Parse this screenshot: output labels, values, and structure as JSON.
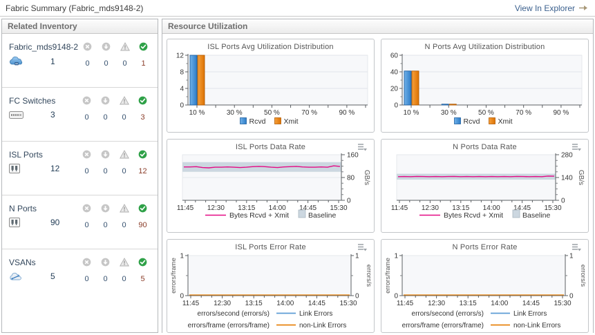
{
  "header": {
    "title": "Fabric Summary (Fabric_mds9148-2)",
    "explorer_link": "View In Explorer"
  },
  "inventory": {
    "title": "Related Inventory",
    "status_columns": [
      "error",
      "down",
      "warning",
      "ok"
    ],
    "items": [
      {
        "label": "Fabric_mds9148-2",
        "icon": "fabric-icon",
        "count": "1",
        "statuses": [
          "0",
          "0",
          "0",
          "1"
        ]
      },
      {
        "label": "FC Switches",
        "icon": "switch-icon",
        "count": "3",
        "statuses": [
          "0",
          "0",
          "0",
          "3"
        ]
      },
      {
        "label": "ISL Ports",
        "icon": "port-icon",
        "count": "12",
        "statuses": [
          "0",
          "0",
          "0",
          "12"
        ]
      },
      {
        "label": "N Ports",
        "icon": "port-icon",
        "count": "90",
        "statuses": [
          "0",
          "0",
          "0",
          "90"
        ]
      },
      {
        "label": "VSANs",
        "icon": "vsan-icon",
        "count": "5",
        "statuses": [
          "0",
          "0",
          "0",
          "5"
        ]
      }
    ]
  },
  "resource": {
    "title": "Resource Utilization"
  },
  "colors": {
    "rcvd_blue": "#3f8ed8",
    "xmit_orange": "#ee830f",
    "rate_line": "#e40984",
    "baseline_band": "#ccd7e0",
    "link_errors": "#5b9bd5",
    "non_link_errors": "#e8820c",
    "ok_green": "#2fa148"
  },
  "chart_data": [
    {
      "type": "bar",
      "title": "ISL Ports Avg Utilization Distribution",
      "categories": [
        "10 %",
        "30 %",
        "50 %",
        "70 %",
        "90 %"
      ],
      "series": [
        {
          "name": "Rcvd",
          "color": "#3f8ed8",
          "values": [
            12,
            0,
            0,
            0,
            0
          ]
        },
        {
          "name": "Xmit",
          "color": "#ee830f",
          "values": [
            12,
            0,
            0,
            0,
            0
          ]
        }
      ],
      "ylim": [
        0,
        12
      ],
      "yticks": [
        0,
        4,
        8,
        12
      ],
      "legend": [
        "Rcvd",
        "Xmit"
      ],
      "grid": true
    },
    {
      "type": "bar",
      "title": "N Ports Avg Utilization Distribution",
      "categories": [
        "10 %",
        "30 %",
        "50 %",
        "70 %",
        "90 %"
      ],
      "series": [
        {
          "name": "Rcvd",
          "color": "#3f8ed8",
          "values": [
            41,
            1,
            0,
            0,
            0
          ]
        },
        {
          "name": "Xmit",
          "color": "#ee830f",
          "values": [
            41,
            1,
            0,
            0,
            0
          ]
        }
      ],
      "ylim": [
        0,
        60
      ],
      "yticks": [
        0,
        20,
        40,
        60
      ],
      "legend": [
        "Rcvd",
        "Xmit"
      ],
      "grid": true
    },
    {
      "type": "line",
      "title": "ISL Ports Data Rate",
      "x_labels": [
        "11:45",
        "12:30",
        "13:15",
        "14:00",
        "14:45",
        "15:30"
      ],
      "ylabel": "GB/s",
      "ylim": [
        0,
        160
      ],
      "yticks": [
        0,
        80,
        160
      ],
      "baseline": {
        "low": 100,
        "high": 134
      },
      "series": [
        {
          "name": "Bytes Rcvd + Xmit",
          "color": "#e40984",
          "values": [
            117,
            117,
            118,
            115,
            114,
            116,
            116,
            117,
            116,
            115,
            116,
            118,
            119,
            118,
            116,
            115,
            117,
            118,
            119,
            117,
            116,
            116,
            117,
            116,
            121,
            119
          ]
        }
      ],
      "legend": [
        {
          "label": "Bytes Rcvd + Xmit",
          "swatch": "line",
          "color": "#e40984"
        },
        {
          "label": "Baseline",
          "swatch": "box",
          "color": "#ccd7e0"
        }
      ],
      "grid": true
    },
    {
      "type": "line",
      "title": "N Ports Data Rate",
      "x_labels": [
        "11:45",
        "12:30",
        "13:15",
        "14:00",
        "14:45",
        "15:30"
      ],
      "ylabel": "GB/s",
      "ylim": [
        0,
        280
      ],
      "yticks": [
        0,
        140,
        280
      ],
      "baseline": {
        "low": 127,
        "high": 163
      },
      "series": [
        {
          "name": "Bytes Rcvd + Xmit",
          "color": "#e40984",
          "values": [
            145,
            146,
            145,
            147,
            146,
            145,
            146,
            145,
            146,
            147,
            145,
            146,
            145,
            146,
            145,
            146,
            145,
            146,
            145,
            147,
            146,
            145,
            146,
            145,
            149,
            148
          ]
        }
      ],
      "legend": [
        {
          "label": "Bytes Rcvd + Xmit",
          "swatch": "line",
          "color": "#e40984"
        },
        {
          "label": "Baseline",
          "swatch": "box",
          "color": "#ccd7e0"
        }
      ],
      "grid": true
    },
    {
      "type": "error",
      "title": "ISL Ports Error Rate",
      "x_labels": [
        "11:45",
        "12:30",
        "13:15",
        "14:00",
        "14:45",
        "15:30"
      ],
      "left_ylabel": "errors/frame",
      "right_ylabel": "errors/s",
      "ylim": [
        0,
        1
      ],
      "yticks": [
        0,
        1
      ],
      "series": [
        {
          "name": "Link Errors",
          "color": "#5b9bd5",
          "values": [
            0,
            0,
            0,
            0,
            0,
            0
          ]
        },
        {
          "name": "non-Link Errors",
          "color": "#e8820c",
          "values": [
            0,
            0,
            0,
            0,
            0,
            0
          ]
        }
      ],
      "legend_rows": [
        {
          "prefix": "errors/second (errors/s)",
          "label": "Link Errors",
          "color": "#5b9bd5"
        },
        {
          "prefix": "errors/frame (errors/frame)",
          "label": "non-Link Errors",
          "color": "#e8820c"
        }
      ],
      "grid": true
    },
    {
      "type": "error",
      "title": "N Ports Error Rate",
      "x_labels": [
        "11:45",
        "12:30",
        "13:15",
        "14:00",
        "14:45",
        "15:30"
      ],
      "left_ylabel": "errors/frame",
      "right_ylabel": "errors/s",
      "ylim": [
        0,
        1
      ],
      "yticks": [
        0,
        1
      ],
      "series": [
        {
          "name": "Link Errors",
          "color": "#5b9bd5",
          "values": [
            0,
            0,
            0,
            0,
            0,
            0
          ]
        },
        {
          "name": "non-Link Errors",
          "color": "#e8820c",
          "values": [
            0,
            0,
            0,
            0,
            0,
            0
          ]
        }
      ],
      "legend_rows": [
        {
          "prefix": "errors/second (errors/s)",
          "label": "Link Errors",
          "color": "#5b9bd5"
        },
        {
          "prefix": "errors/frame (errors/frame)",
          "label": "non-Link Errors",
          "color": "#e8820c"
        }
      ],
      "grid": true
    }
  ]
}
